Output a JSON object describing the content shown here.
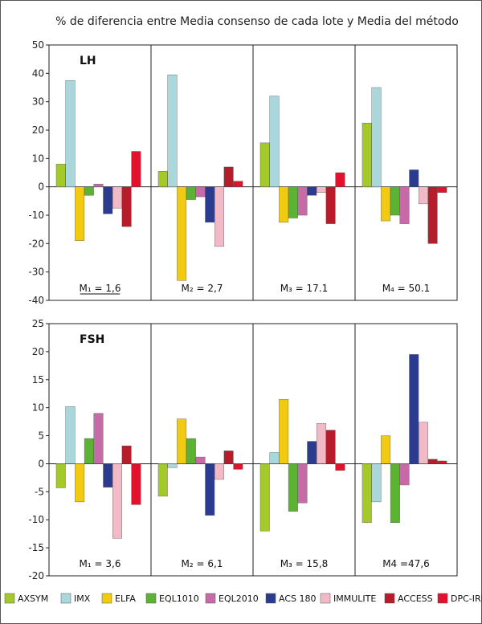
{
  "title": "% de diferencia entre Media consenso de cada lote y Media del método",
  "chart_data": [
    {
      "type": "bar",
      "panel_label": "LH",
      "ylim": [
        -40,
        50
      ],
      "yticks": [
        -40,
        -30,
        -20,
        -10,
        0,
        10,
        20,
        30,
        40,
        50
      ],
      "groups": [
        {
          "label": "M₁ = 1,6",
          "underline": true,
          "values": [
            8,
            37.5,
            -19,
            -3,
            1,
            -9.5,
            -7.5,
            -14,
            12.5
          ]
        },
        {
          "label": "M₂ = 2,7",
          "underline": false,
          "values": [
            5.5,
            39.5,
            -33,
            -4.5,
            -3.5,
            -12.5,
            -21,
            7,
            2
          ]
        },
        {
          "label": "M₃ = 17.1",
          "underline": false,
          "values": [
            15.5,
            32,
            -12.5,
            -11,
            -10,
            -3,
            -2,
            -13,
            5
          ]
        },
        {
          "label": "M₄ = 50.1",
          "underline": false,
          "values": [
            22.5,
            35,
            -12,
            -10,
            -13,
            6,
            -6,
            -20,
            -2
          ]
        }
      ]
    },
    {
      "type": "bar",
      "panel_label": "FSH",
      "ylim": [
        -20,
        25
      ],
      "yticks": [
        -20,
        -15,
        -10,
        -5,
        0,
        5,
        10,
        15,
        20,
        25
      ],
      "groups": [
        {
          "label": "M₁ = 3,6",
          "underline": false,
          "values": [
            -4.3,
            10.2,
            -6.8,
            4.5,
            9,
            -4.2,
            -13.3,
            3.2,
            -7.3
          ]
        },
        {
          "label": "M₂ = 6,1",
          "underline": false,
          "values": [
            -5.8,
            -0.7,
            8,
            4.5,
            1.2,
            -9.2,
            -2.8,
            2.3,
            -1
          ]
        },
        {
          "label": "M₃ = 15,8",
          "underline": false,
          "values": [
            -12,
            2,
            11.5,
            -8.5,
            -7,
            4,
            7.2,
            6,
            -1.2
          ]
        },
        {
          "label": "M4 =47,6",
          "underline": false,
          "values": [
            -10.5,
            -6.8,
            5,
            -10.5,
            -3.8,
            19.5,
            7.4,
            0.8,
            0.5
          ]
        }
      ]
    }
  ],
  "legend": [
    {
      "name": "AXSYM",
      "color": "#a3c92b"
    },
    {
      "name": "IMX",
      "color": "#a9d7dc"
    },
    {
      "name": "ELFA",
      "color": "#f2cb10"
    },
    {
      "name": "EQL1010",
      "color": "#5bb233"
    },
    {
      "name": "EQL2010",
      "color": "#c66aa8"
    },
    {
      "name": "ACS 180",
      "color": "#2b3b8f"
    },
    {
      "name": "IMMULITE",
      "color": "#f2b9c6"
    },
    {
      "name": "ACCESS",
      "color": "#b71c2a"
    },
    {
      "name": "DPC-IRMA",
      "color": "#e3122c"
    }
  ]
}
